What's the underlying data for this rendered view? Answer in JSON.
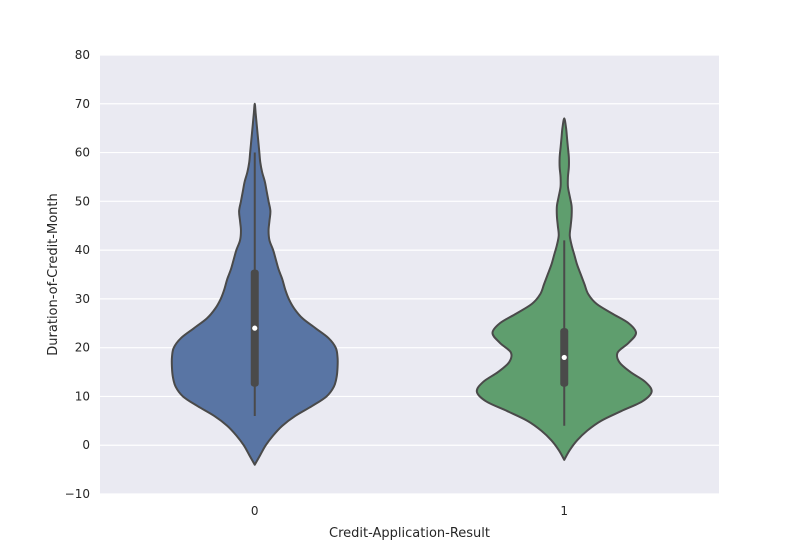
{
  "chart_data": {
    "type": "violin",
    "xlabel": "Credit-Application-Result",
    "ylabel": "Duration-of-Credit-Month",
    "ylim": [
      -10,
      80
    ],
    "yticks": [
      -10,
      0,
      10,
      20,
      30,
      40,
      50,
      60,
      70,
      80
    ],
    "ytick_labels": [
      "−10",
      "0",
      "10",
      "20",
      "30",
      "40",
      "50",
      "60",
      "70",
      "80"
    ],
    "categories": [
      "0",
      "1"
    ],
    "grid": true,
    "background_color": "#EAEAF2",
    "grid_color": "#FFFFFF",
    "edge_color": "#4A4A4A",
    "violins": [
      {
        "category": "0",
        "color": "#5975A4",
        "whisker_low": 6,
        "q1": 12,
        "median": 24,
        "q3": 36,
        "whisker_high": 60,
        "profile": [
          [
            -4,
            0.0
          ],
          [
            -2,
            0.06
          ],
          [
            0,
            0.12
          ],
          [
            2,
            0.2
          ],
          [
            4,
            0.3
          ],
          [
            6,
            0.44
          ],
          [
            8,
            0.62
          ],
          [
            10,
            0.78
          ],
          [
            12,
            0.86
          ],
          [
            14,
            0.89
          ],
          [
            16,
            0.9
          ],
          [
            18,
            0.9
          ],
          [
            20,
            0.88
          ],
          [
            22,
            0.8
          ],
          [
            24,
            0.66
          ],
          [
            26,
            0.52
          ],
          [
            28,
            0.43
          ],
          [
            30,
            0.37
          ],
          [
            32,
            0.33
          ],
          [
            34,
            0.3
          ],
          [
            36,
            0.26
          ],
          [
            38,
            0.23
          ],
          [
            40,
            0.2
          ],
          [
            42,
            0.16
          ],
          [
            44,
            0.15
          ],
          [
            46,
            0.16
          ],
          [
            48,
            0.17
          ],
          [
            50,
            0.15
          ],
          [
            52,
            0.13
          ],
          [
            54,
            0.11
          ],
          [
            56,
            0.08
          ],
          [
            58,
            0.06
          ],
          [
            60,
            0.05
          ],
          [
            62,
            0.04
          ],
          [
            64,
            0.03
          ],
          [
            66,
            0.02
          ],
          [
            68,
            0.01
          ],
          [
            70,
            0.0
          ]
        ]
      },
      {
        "category": "1",
        "color": "#5F9E6E",
        "whisker_low": 4,
        "q1": 12,
        "median": 18,
        "q3": 24,
        "whisker_high": 42,
        "profile": [
          [
            -3,
            0.0
          ],
          [
            -1,
            0.06
          ],
          [
            1,
            0.14
          ],
          [
            3,
            0.25
          ],
          [
            5,
            0.4
          ],
          [
            7,
            0.62
          ],
          [
            9,
            0.85
          ],
          [
            11,
            0.95
          ],
          [
            13,
            0.88
          ],
          [
            15,
            0.72
          ],
          [
            17,
            0.6
          ],
          [
            19,
            0.58
          ],
          [
            21,
            0.7
          ],
          [
            23,
            0.78
          ],
          [
            25,
            0.7
          ],
          [
            27,
            0.52
          ],
          [
            29,
            0.35
          ],
          [
            31,
            0.26
          ],
          [
            33,
            0.22
          ],
          [
            35,
            0.18
          ],
          [
            37,
            0.14
          ],
          [
            39,
            0.11
          ],
          [
            41,
            0.08
          ],
          [
            43,
            0.06
          ],
          [
            45,
            0.07
          ],
          [
            47,
            0.08
          ],
          [
            49,
            0.08
          ],
          [
            51,
            0.06
          ],
          [
            53,
            0.04
          ],
          [
            55,
            0.04
          ],
          [
            57,
            0.05
          ],
          [
            59,
            0.05
          ],
          [
            61,
            0.04
          ],
          [
            63,
            0.03
          ],
          [
            65,
            0.02
          ],
          [
            67,
            0.0
          ]
        ]
      }
    ]
  }
}
